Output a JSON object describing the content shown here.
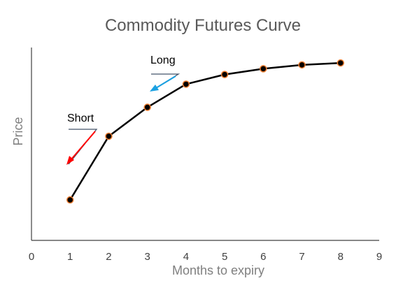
{
  "chart_data": {
    "type": "line",
    "title": "Commodity Futures Curve",
    "xlabel": "Months to expiry",
    "ylabel": "Price",
    "xlim": [
      0,
      9
    ],
    "ylim": [
      0,
      100
    ],
    "xticks": [
      "0",
      "1",
      "2",
      "3",
      "4",
      "5",
      "6",
      "7",
      "8",
      "9"
    ],
    "x": [
      1,
      2,
      3,
      4,
      5,
      6,
      7,
      8
    ],
    "y": [
      21,
      54,
      69,
      81,
      86,
      89,
      91,
      92
    ],
    "grid": false,
    "line_color": "#000000",
    "marker_fill": "#000000",
    "marker_edge": "#ed7d31",
    "annotations": [
      {
        "label": "Short",
        "arrow_color": "#ff0000",
        "triangle_color": "#44546a"
      },
      {
        "label": "Long",
        "arrow_color": "#1ba1e2",
        "triangle_color": "#44546a"
      }
    ]
  }
}
